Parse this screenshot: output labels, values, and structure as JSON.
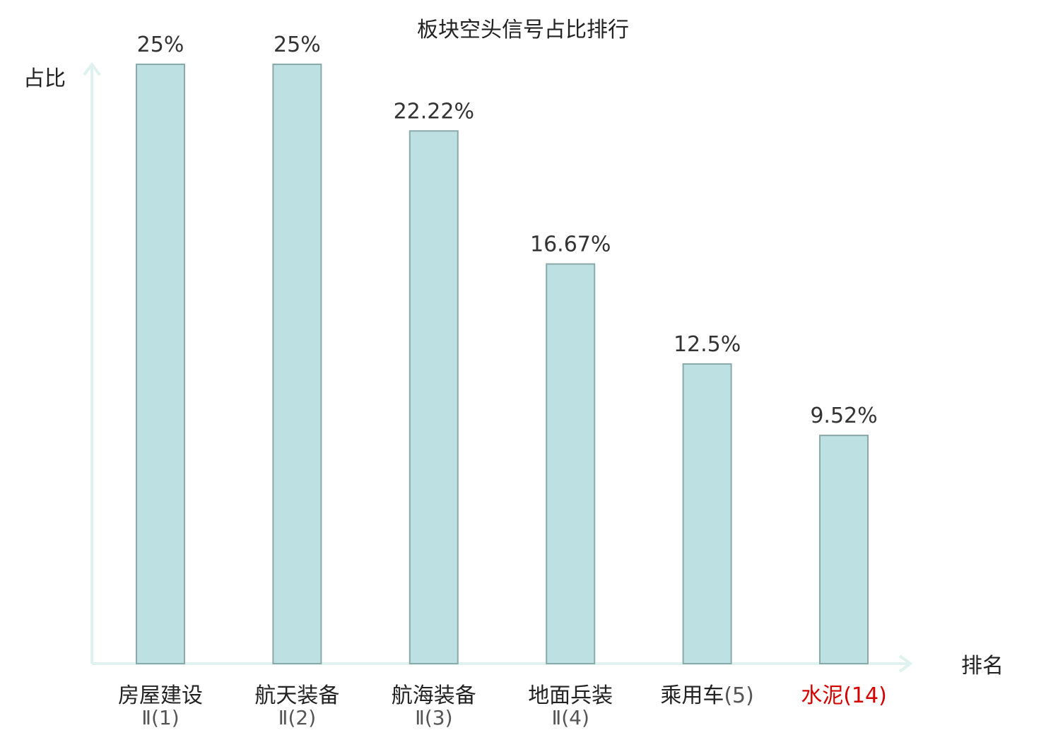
{
  "chart_data": {
    "type": "bar",
    "title": "板块空头信号占比排行",
    "ylabel": "占比",
    "xlabel": "排名",
    "ylim": [
      0,
      25
    ],
    "grid": false,
    "categories": [
      {
        "name": "房屋建设",
        "sub": "Ⅱ",
        "rank": "(1)"
      },
      {
        "name": "航天装备",
        "sub": "Ⅱ",
        "rank": "(2)"
      },
      {
        "name": "航海装备",
        "sub": "Ⅱ",
        "rank": "(3)"
      },
      {
        "name": "地面兵装",
        "sub": "Ⅱ",
        "rank": "(4)"
      },
      {
        "name": "乘用车",
        "sub": "",
        "rank": "(5)"
      },
      {
        "name": "水泥",
        "sub": "",
        "rank": "(14)",
        "highlight": true
      }
    ],
    "values": [
      25,
      25,
      22.22,
      16.67,
      12.5,
      9.52
    ],
    "value_labels": [
      "25%",
      "25%",
      "22.22%",
      "16.67%",
      "12.5%",
      "9.52%"
    ],
    "colors": {
      "bar_fill": "#bde0e3",
      "bar_stroke": "#8aa9aa",
      "axis": "#e0f2ef",
      "highlight": "#d40000"
    }
  }
}
